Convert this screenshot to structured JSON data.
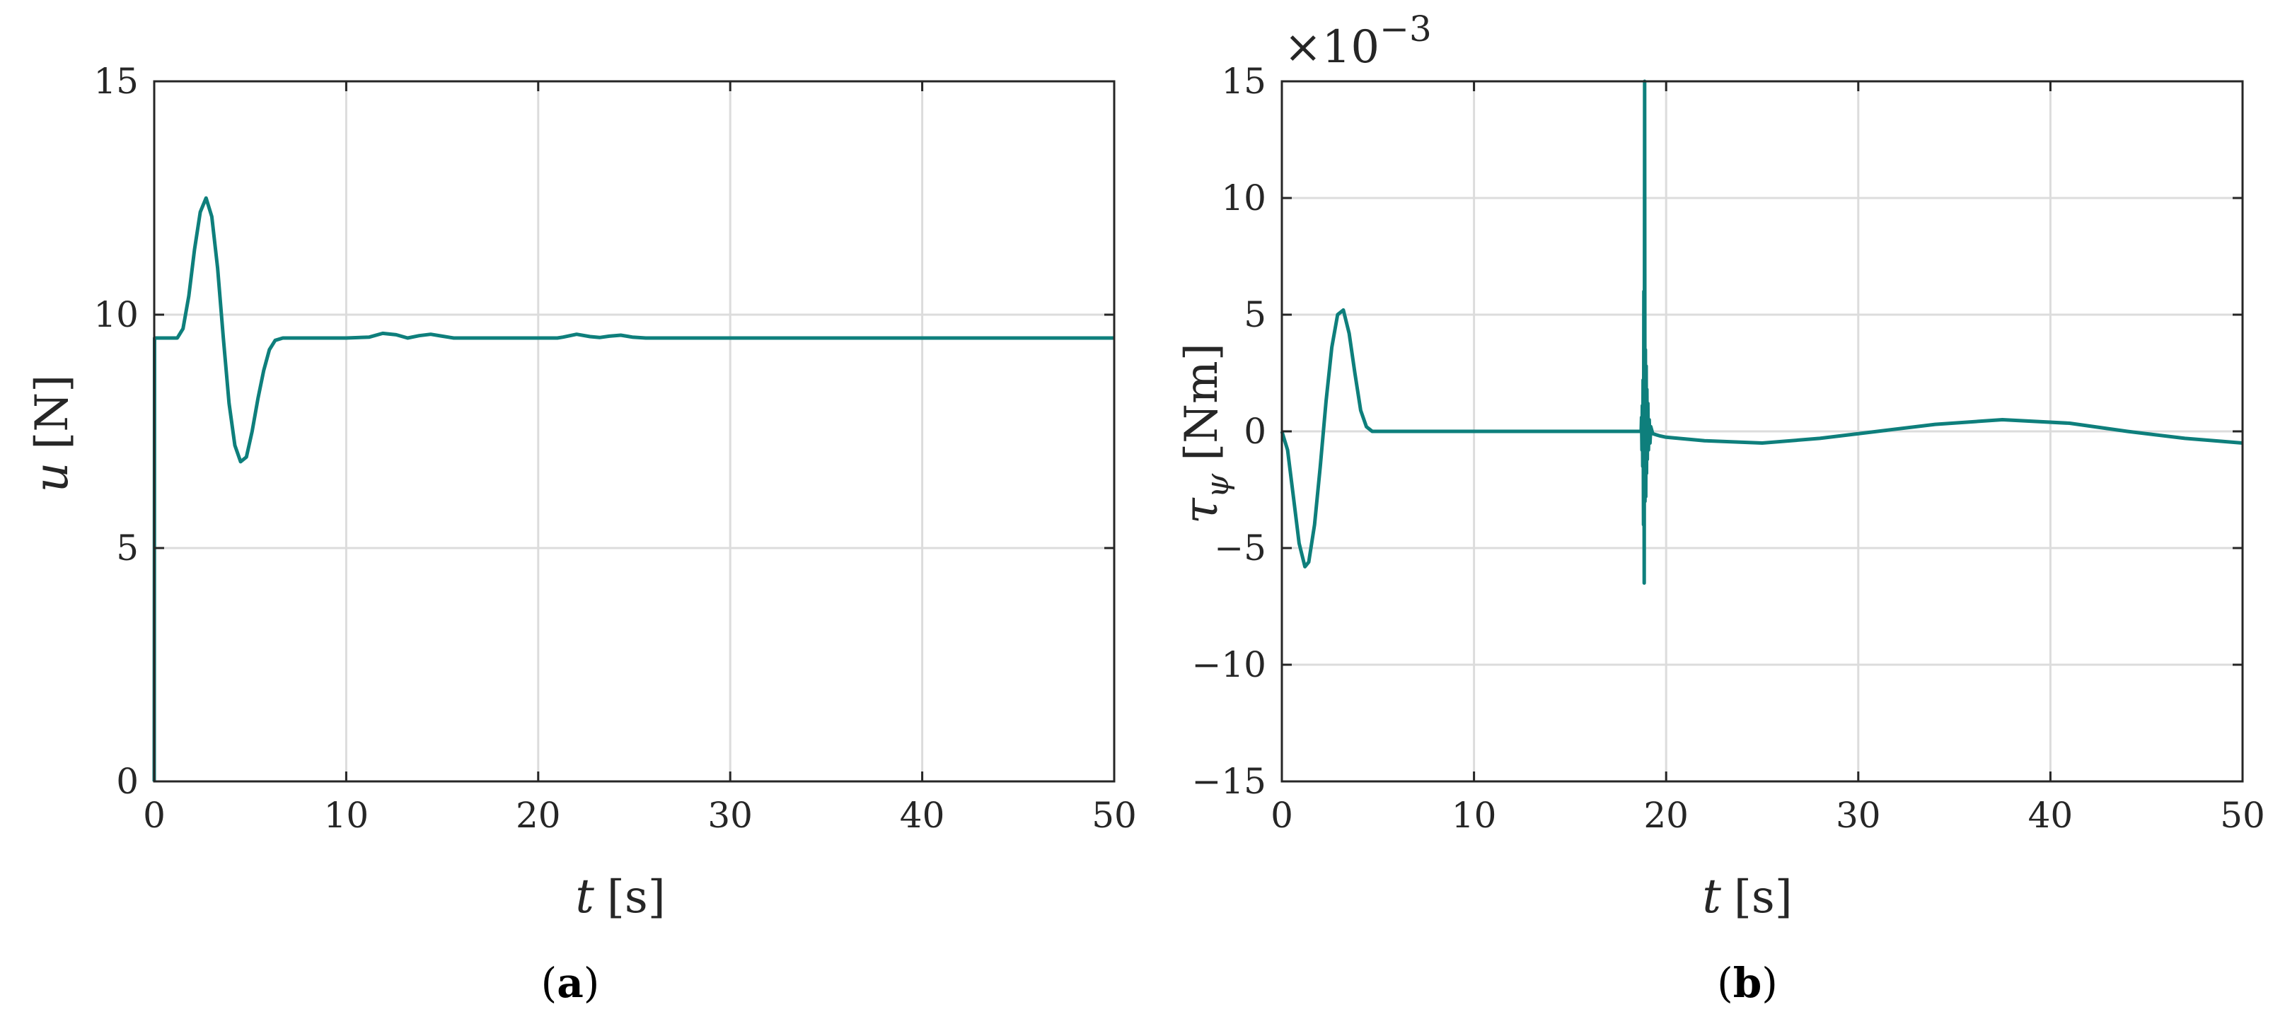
{
  "colors": {
    "series": "#0e7f7c",
    "grid": "#dcdcdc",
    "axis": "#262626"
  },
  "chart_data": [
    {
      "type": "line",
      "panel_label": "a",
      "xlabel": {
        "symbol": "t",
        "unit": "[s]"
      },
      "ylabel": {
        "symbol": "u",
        "unit": "[N]"
      },
      "xlim": [
        0,
        50
      ],
      "ylim": [
        0,
        15
      ],
      "xticks": [
        "0",
        "10",
        "20",
        "30",
        "40",
        "50"
      ],
      "yticks": [
        "0",
        "5",
        "10",
        "15"
      ],
      "grid": true,
      "series": [
        {
          "x": [
            0,
            0.02,
            0.1,
            1.2,
            1.5,
            1.8,
            2.1,
            2.4,
            2.7,
            3.0,
            3.3,
            3.6,
            3.9,
            4.2,
            4.5,
            4.8,
            5.1,
            5.4,
            5.7,
            6.0,
            6.3,
            6.7,
            7.0,
            10,
            11.2,
            11.9,
            12.6,
            13.2,
            13.8,
            14.4,
            15.0,
            15.6,
            16.4,
            17,
            21,
            21.3,
            22.0,
            22.7,
            23.2,
            23.7,
            24.3,
            24.9,
            25.6,
            26.3,
            50
          ],
          "y": [
            0,
            9.5,
            9.5,
            9.5,
            9.7,
            10.4,
            11.4,
            12.2,
            12.5,
            12.1,
            11.0,
            9.5,
            8.1,
            7.2,
            6.85,
            6.95,
            7.5,
            8.2,
            8.8,
            9.25,
            9.45,
            9.5,
            9.5,
            9.5,
            9.52,
            9.6,
            9.57,
            9.5,
            9.55,
            9.58,
            9.54,
            9.5,
            9.5,
            9.5,
            9.5,
            9.52,
            9.58,
            9.53,
            9.51,
            9.54,
            9.56,
            9.52,
            9.5,
            9.5,
            9.5
          ]
        }
      ]
    },
    {
      "type": "line",
      "panel_label": "b",
      "xlabel": {
        "symbol": "t",
        "unit": "[s]"
      },
      "ylabel": {
        "symbol": "τ",
        "subscript": "ψ",
        "unit": "[Nm]"
      },
      "y_multiplier": {
        "base": "×10",
        "exponent": "−3"
      },
      "xlim": [
        0,
        50
      ],
      "ylim": [
        -15,
        15
      ],
      "xticks": [
        "0",
        "10",
        "20",
        "30",
        "40",
        "50"
      ],
      "yticks": [
        "−15",
        "−10",
        "−5",
        "0",
        "5",
        "10",
        "15"
      ],
      "grid": true,
      "series": [
        {
          "x": [
            0,
            0.3,
            0.6,
            0.9,
            1.2,
            1.4,
            1.7,
            2.0,
            2.3,
            2.6,
            2.9,
            3.2,
            3.5,
            3.8,
            4.1,
            4.4,
            4.7,
            5.0,
            10,
            18.7,
            18.72,
            18.74,
            18.76,
            18.78,
            18.8,
            18.82,
            18.84,
            18.86,
            18.88,
            18.9,
            18.92,
            18.94,
            18.96,
            18.98,
            19.0,
            19.02,
            19.05,
            19.08,
            19.12,
            19.16,
            19.2,
            19.3,
            19.5,
            19.7,
            20.0,
            22,
            25,
            28,
            31,
            34,
            37.5,
            41,
            44,
            47,
            50
          ],
          "y": [
            0,
            -0.8,
            -2.8,
            -4.8,
            -5.8,
            -5.6,
            -4.0,
            -1.5,
            1.3,
            3.6,
            5.0,
            5.2,
            4.2,
            2.5,
            0.9,
            0.2,
            0.0,
            0.0,
            0.0,
            0.0,
            0.6,
            -0.8,
            1.1,
            -1.5,
            2.2,
            -4.0,
            6.0,
            -6.5,
            15.5,
            -3.0,
            3.5,
            -2.8,
            2.8,
            -1.8,
            1.8,
            -1.2,
            1.2,
            -0.8,
            0.5,
            -0.5,
            0.2,
            -0.1,
            -0.15,
            -0.2,
            -0.25,
            -0.4,
            -0.5,
            -0.3,
            0.0,
            0.3,
            0.5,
            0.35,
            0.0,
            -0.3,
            -0.5
          ]
        }
      ]
    }
  ]
}
